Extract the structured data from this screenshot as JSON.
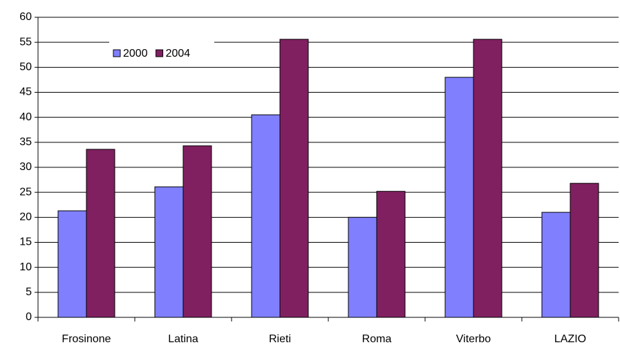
{
  "chart_data": {
    "type": "bar",
    "categories": [
      "Frosinone",
      "Latina",
      "Rieti",
      "Roma",
      "Viterbo",
      "LAZIO"
    ],
    "series": [
      {
        "name": "2000",
        "color": "#8080ff",
        "values": [
          21.3,
          26.1,
          40.5,
          20.0,
          48.0,
          21.0
        ]
      },
      {
        "name": "2004",
        "color": "#802060",
        "values": [
          33.6,
          34.3,
          55.6,
          25.2,
          55.6,
          26.8
        ]
      }
    ],
    "ylim": [
      0,
      60
    ],
    "yticks": [
      0,
      5,
      10,
      15,
      20,
      25,
      30,
      35,
      40,
      45,
      50,
      55,
      60
    ],
    "grid": true,
    "legend": "top-left"
  }
}
